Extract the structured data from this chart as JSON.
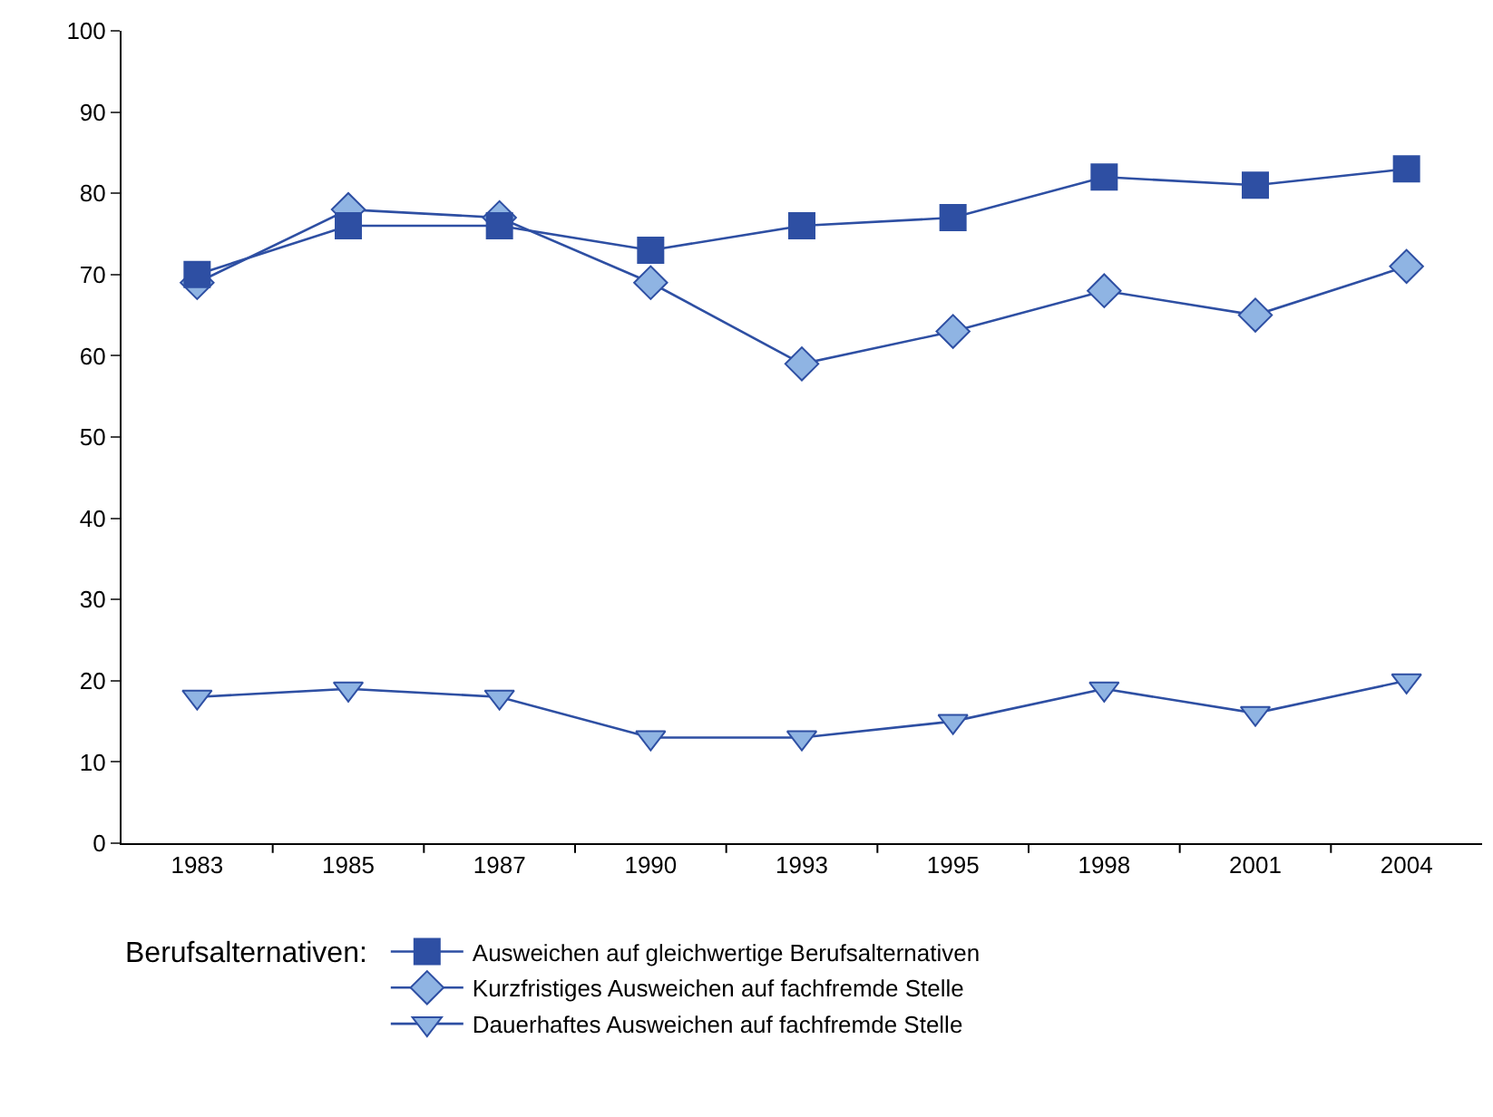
{
  "chart_data": {
    "type": "line",
    "categories": [
      "1983",
      "1985",
      "1987",
      "1990",
      "1993",
      "1995",
      "1998",
      "2001",
      "2004"
    ],
    "series": [
      {
        "name": "Ausweichen auf gleichwertige Berufsalternativen",
        "color": "#2e4fa3",
        "marker": "square",
        "values": [
          70,
          76,
          76,
          73,
          76,
          77,
          82,
          81,
          83
        ]
      },
      {
        "name": "Kurzfristiges Ausweichen auf fachfremde Stelle",
        "color": "#8fb4e3",
        "marker": "diamond",
        "values": [
          69,
          78,
          77,
          69,
          59,
          63,
          68,
          65,
          71
        ]
      },
      {
        "name": "Dauerhaftes Ausweichen auf fachfremde Stelle",
        "color": "#8fb4e3",
        "marker": "triangle",
        "values": [
          18,
          19,
          18,
          13,
          13,
          15,
          19,
          16,
          20
        ]
      }
    ],
    "legend_title": "Berufsalternativen:",
    "legend": "bottom",
    "grid": false,
    "ylim": [
      0,
      100
    ],
    "yticks": [
      0,
      10,
      20,
      30,
      40,
      50,
      60,
      70,
      80,
      90,
      100
    ]
  }
}
